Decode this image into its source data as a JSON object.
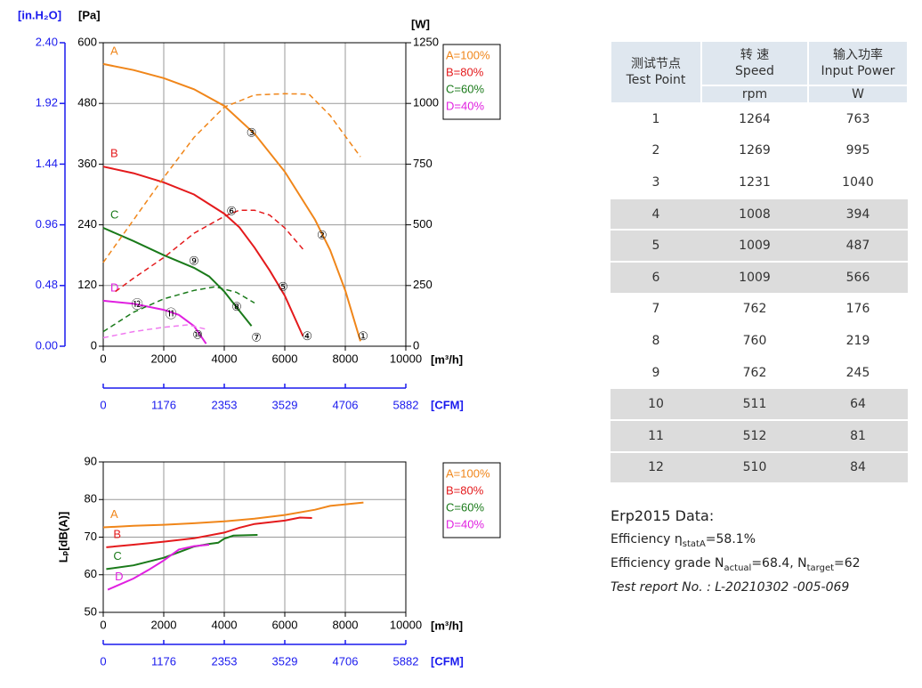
{
  "chart_data": [
    {
      "type": "line",
      "xlabel": "[m³/h]",
      "ylabel": "[Pa]",
      "y2label": "[W]",
      "y3label": "[in.H₂O]",
      "x2label": "[CFM]",
      "xlim": [
        0,
        10000
      ],
      "xticks": [
        0,
        2000,
        4000,
        6000,
        8000,
        10000
      ],
      "ylim": [
        0,
        600
      ],
      "yticks": [
        0,
        120,
        240,
        360,
        480,
        600
      ],
      "y2lim": [
        0,
        1250
      ],
      "y2ticks": [
        0,
        250,
        500,
        750,
        1000,
        1250
      ],
      "y3lim": [
        0,
        2.4
      ],
      "y3ticks": [
        {
          "value": 0,
          "label": "0.00"
        },
        0.48,
        0.96,
        1.44,
        1.92,
        {
          "value": 2.4,
          "label": "2.40"
        }
      ],
      "x2lim": [
        0,
        5882
      ],
      "x2ticks": [
        0,
        1176,
        2353,
        3529,
        4706,
        5882
      ],
      "grid": true,
      "series": [
        {
          "name": "A=100%",
          "label": "A",
          "color": "#f0861a",
          "x": [
            0,
            1000,
            2000,
            3000,
            4000,
            5000,
            6000,
            7000,
            7500,
            8000,
            8500
          ],
          "values": [
            558,
            546,
            530,
            508,
            475,
            420,
            345,
            250,
            190,
            110,
            10
          ]
        },
        {
          "name": "B=80%",
          "label": "B",
          "color": "#e41a1c",
          "x": [
            0,
            1000,
            2000,
            3000,
            4000,
            4500,
            5000,
            5500,
            6000,
            6600
          ],
          "values": [
            355,
            342,
            324,
            300,
            262,
            235,
            195,
            150,
            100,
            20
          ]
        },
        {
          "name": "C=60%",
          "label": "C",
          "color": "#1a7a1a",
          "x": [
            0,
            1000,
            2000,
            3000,
            3500,
            4000,
            4500,
            4900
          ],
          "values": [
            234,
            208,
            180,
            155,
            138,
            108,
            70,
            40
          ]
        },
        {
          "name": "D=40%",
          "label": "D",
          "color": "#e020e0",
          "x": [
            0,
            1000,
            2000,
            2500,
            3000,
            3400
          ],
          "values": [
            90,
            84,
            72,
            62,
            40,
            5
          ]
        },
        {
          "color": "#f0861a",
          "axis": "y2",
          "dashed": true,
          "x": [
            0,
            1000,
            2000,
            3000,
            4000,
            5000,
            6000,
            6800,
            7500,
            8500
          ],
          "values": [
            345,
            520,
            695,
            860,
            985,
            1035,
            1040,
            1038,
            950,
            780
          ]
        },
        {
          "color": "#e41a1c",
          "axis": "y2",
          "dashed": true,
          "x": [
            400,
            1000,
            2000,
            3000,
            4000,
            4500,
            5000,
            5500,
            6000,
            6600
          ],
          "values": [
            225,
            280,
            365,
            465,
            535,
            560,
            560,
            540,
            487,
            400
          ]
        },
        {
          "color": "#1a7a1a",
          "axis": "y2",
          "dashed": true,
          "x": [
            0,
            1000,
            2000,
            3000,
            3700,
            4400,
            5000
          ],
          "values": [
            60,
            140,
            195,
            230,
            245,
            222,
            178
          ]
        },
        {
          "color": "#f07af0",
          "axis": "y2",
          "dashed": true,
          "x": [
            0,
            1000,
            2000,
            2800,
            3400
          ],
          "values": [
            35,
            60,
            78,
            88,
            70
          ]
        }
      ],
      "test_points": [
        {
          "label": "①",
          "x": 8590,
          "y": 18
        },
        {
          "label": "②",
          "x": 7230,
          "y": 218
        },
        {
          "label": "③",
          "x": 4900,
          "y": 420
        },
        {
          "label": "④",
          "x": 6740,
          "y": 18
        },
        {
          "label": "⑤",
          "x": 5940,
          "y": 116
        },
        {
          "label": "⑥",
          "x": 4240,
          "y": 266
        },
        {
          "label": "⑦",
          "x": 5060,
          "y": 16
        },
        {
          "label": "⑧",
          "x": 4410,
          "y": 76
        },
        {
          "label": "⑨",
          "x": 3000,
          "y": 167
        },
        {
          "label": "⑩",
          "x": 3120,
          "y": 21
        },
        {
          "label": "⑪",
          "x": 2240,
          "y": 62
        },
        {
          "label": "⑫",
          "x": 1120,
          "y": 81
        }
      ]
    },
    {
      "type": "line",
      "xlabel": "[m³/h]",
      "ylabel": "Lₚ[dB(A)]",
      "x2label": "[CFM]",
      "xlim": [
        0,
        10000
      ],
      "xticks": [
        0,
        2000,
        4000,
        6000,
        8000,
        10000
      ],
      "ylim": [
        50,
        90
      ],
      "yticks": [
        50,
        60,
        70,
        80,
        90
      ],
      "x2lim": [
        0,
        5882
      ],
      "x2ticks": [
        0,
        1176,
        2353,
        3529,
        4706,
        5882
      ],
      "grid": true,
      "series": [
        {
          "name": "A=100%",
          "label": "A",
          "color": "#f0861a",
          "x": [
            0,
            1000,
            2000,
            3000,
            4000,
            5000,
            6000,
            7000,
            7500,
            8600
          ],
          "values": [
            72.6,
            73,
            73.3,
            73.7,
            74.2,
            74.9,
            75.9,
            77.3,
            78.3,
            79.2
          ]
        },
        {
          "name": "B=80%",
          "label": "B",
          "color": "#e41a1c",
          "x": [
            100,
            1000,
            2000,
            3000,
            4000,
            4500,
            5000,
            6000,
            6500,
            6900
          ],
          "values": [
            67.3,
            68,
            68.8,
            69.7,
            71.2,
            72.5,
            73.5,
            74.4,
            75.2,
            75.1
          ]
        },
        {
          "name": "C=60%",
          "label": "C",
          "color": "#1a7a1a",
          "x": [
            100,
            1000,
            2000,
            2500,
            3000,
            3500,
            3800,
            4000,
            4300,
            5100
          ],
          "values": [
            61.5,
            62.5,
            64.5,
            66,
            67.5,
            68.2,
            68.5,
            69.6,
            70.4,
            70.6
          ]
        },
        {
          "name": "D=40%",
          "label": "D",
          "color": "#e020e0",
          "x": [
            150,
            1000,
            1500,
            2000,
            2500,
            3000,
            3500
          ],
          "values": [
            56,
            59,
            61.3,
            63.8,
            66.7,
            67.6,
            68
          ]
        }
      ]
    }
  ],
  "table": {
    "header": [
      [
        "测试节点",
        "Test Point"
      ],
      [
        "转 速",
        "Speed",
        "rpm"
      ],
      [
        "输入功率",
        "Input Power",
        "W"
      ]
    ],
    "rows": [
      [
        1,
        1264,
        763
      ],
      [
        2,
        1269,
        995
      ],
      [
        3,
        1231,
        1040
      ],
      [
        4,
        1008,
        394
      ],
      [
        5,
        1009,
        487
      ],
      [
        6,
        1009,
        566
      ],
      [
        7,
        762,
        176
      ],
      [
        8,
        760,
        219
      ],
      [
        9,
        762,
        245
      ],
      [
        10,
        511,
        64
      ],
      [
        11,
        512,
        81
      ],
      [
        12,
        510,
        84
      ]
    ]
  },
  "notes": {
    "title": "Erp2015  Data:",
    "efficiency": [
      "Efficiency η",
      "statA",
      "=58.1%"
    ],
    "grade": [
      "Efficiency grade  N",
      "actual",
      "=68.4, N",
      "target",
      "=62"
    ],
    "report": "Test report No. : L-20210302 -005-069"
  }
}
